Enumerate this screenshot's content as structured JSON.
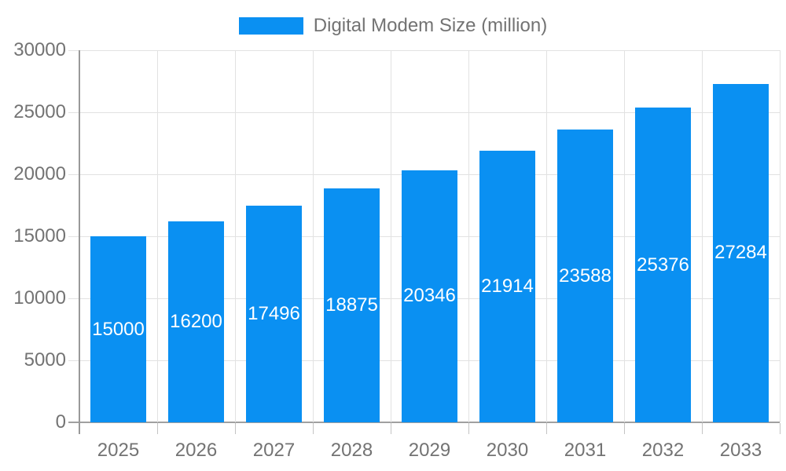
{
  "chart_data": {
    "type": "bar",
    "title": "Digital Modem Size (million)",
    "categories": [
      "2025",
      "2026",
      "2027",
      "2028",
      "2029",
      "2030",
      "2031",
      "2032",
      "2033"
    ],
    "series": [
      {
        "name": "Digital Modem Size (million)",
        "color": "#0a90f2",
        "values": [
          15000,
          16200,
          17496,
          18875,
          20346,
          21914,
          23588,
          25376,
          27284
        ]
      }
    ],
    "xlabel": "",
    "ylabel": "",
    "ylim": [
      0,
      30000
    ],
    "yticks": [
      0,
      5000,
      10000,
      15000,
      20000,
      25000,
      30000
    ],
    "grid": true,
    "legend_position": "top-center",
    "bar_labels_visible": true,
    "bar_label_color": "#ffffff",
    "colors": {
      "bar": "#0a90f2",
      "gridline": "#e2e2e2",
      "zero_line": "#a0a0a0",
      "axis_line": "#999999",
      "x_tick": "#c4c4c4",
      "tick_label": "#737373",
      "legend_text": "#737373",
      "background": "#ffffff"
    }
  }
}
